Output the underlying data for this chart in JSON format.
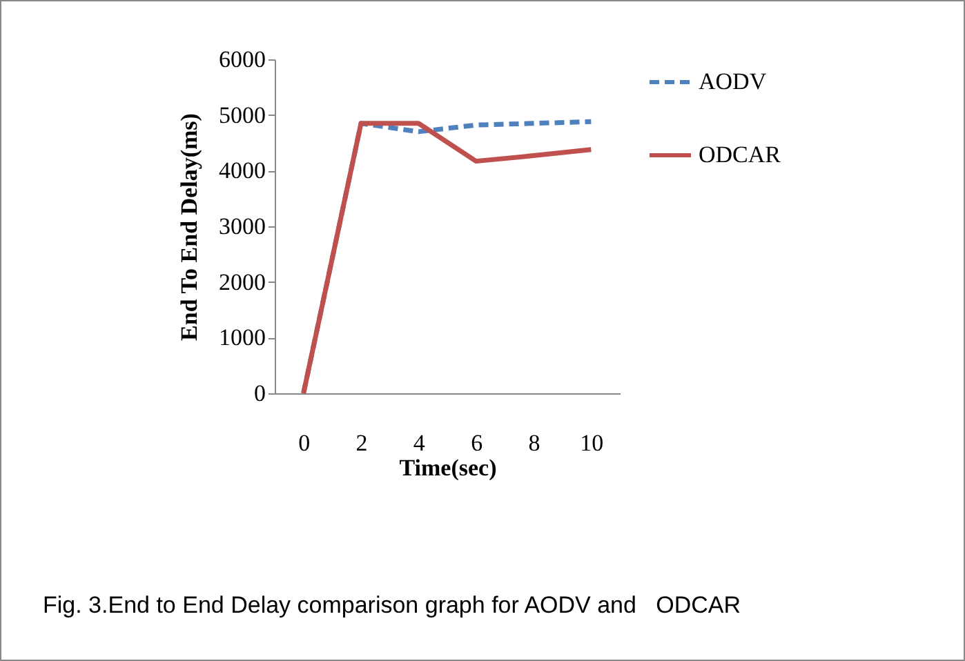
{
  "chart_data": {
    "type": "line",
    "xlabel": "Time(sec)",
    "ylabel": "End To End Delay(ms)",
    "categories": [
      "0",
      "2",
      "4",
      "6",
      "8",
      "10"
    ],
    "series": [
      {
        "name": "AODV",
        "color": "#4f81bd",
        "line_style": "dashed",
        "values": [
          0,
          4850,
          4700,
          4820,
          4850,
          4880
        ]
      },
      {
        "name": "ODCAR",
        "color": "#c0504d",
        "line_style": "solid",
        "values": [
          0,
          4850,
          4850,
          4170,
          4270,
          4380
        ]
      }
    ],
    "ylim": [
      0,
      6000
    ],
    "yticks": [
      0,
      1000,
      2000,
      3000,
      4000,
      5000,
      6000
    ],
    "legend": "right",
    "annotations": [
      "Fig. 3.End to End Delay comparison graph for AODV and   ODCAR"
    ]
  }
}
